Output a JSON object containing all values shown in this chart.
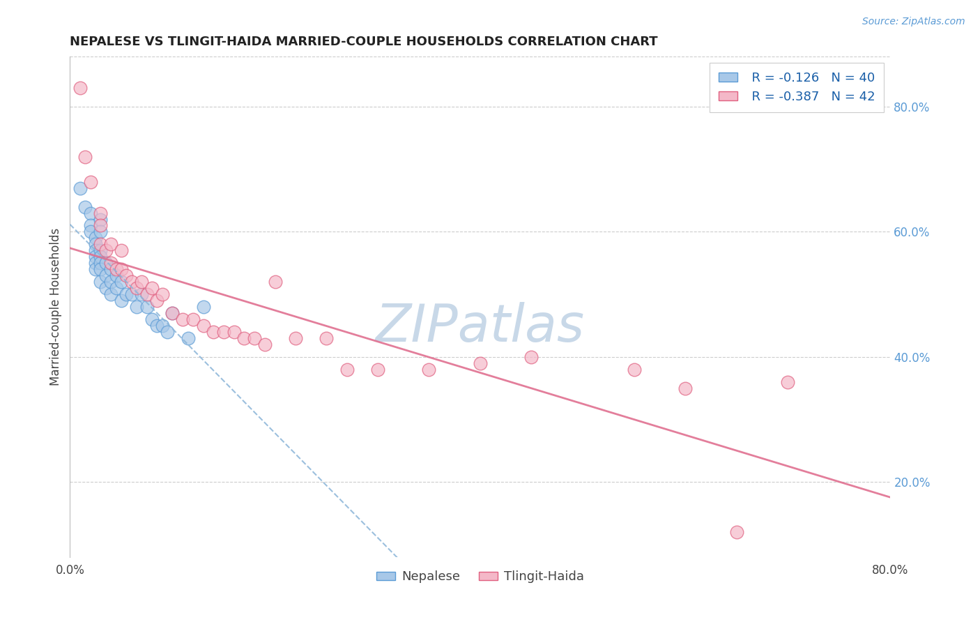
{
  "title": "NEPALESE VS TLINGIT-HAIDA MARRIED-COUPLE HOUSEHOLDS CORRELATION CHART",
  "source_text": "Source: ZipAtlas.com",
  "ylabel": "Married-couple Households",
  "xlim": [
    0.0,
    0.8
  ],
  "ylim": [
    0.08,
    0.88
  ],
  "blue_color": "#a8c8e8",
  "blue_edge_color": "#5b9bd5",
  "pink_color": "#f4b8c8",
  "pink_edge_color": "#e06080",
  "blue_line_color": "#8ab4d8",
  "pink_line_color": "#e07090",
  "nepalese_x": [
    0.01,
    0.015,
    0.02,
    0.02,
    0.02,
    0.025,
    0.025,
    0.025,
    0.025,
    0.025,
    0.025,
    0.03,
    0.03,
    0.03,
    0.03,
    0.03,
    0.03,
    0.03,
    0.035,
    0.035,
    0.035,
    0.04,
    0.04,
    0.04,
    0.045,
    0.045,
    0.05,
    0.05,
    0.055,
    0.06,
    0.065,
    0.07,
    0.075,
    0.08,
    0.085,
    0.09,
    0.095,
    0.1,
    0.115,
    0.13
  ],
  "nepalese_y": [
    0.67,
    0.64,
    0.63,
    0.61,
    0.6,
    0.59,
    0.58,
    0.57,
    0.56,
    0.55,
    0.54,
    0.62,
    0.6,
    0.57,
    0.56,
    0.55,
    0.54,
    0.52,
    0.55,
    0.53,
    0.51,
    0.54,
    0.52,
    0.5,
    0.53,
    0.51,
    0.52,
    0.49,
    0.5,
    0.5,
    0.48,
    0.5,
    0.48,
    0.46,
    0.45,
    0.45,
    0.44,
    0.47,
    0.43,
    0.48
  ],
  "tlingit_x": [
    0.01,
    0.015,
    0.02,
    0.03,
    0.03,
    0.03,
    0.035,
    0.04,
    0.04,
    0.045,
    0.05,
    0.05,
    0.055,
    0.06,
    0.065,
    0.07,
    0.075,
    0.08,
    0.085,
    0.09,
    0.1,
    0.11,
    0.12,
    0.13,
    0.14,
    0.15,
    0.16,
    0.17,
    0.18,
    0.19,
    0.2,
    0.22,
    0.25,
    0.27,
    0.3,
    0.35,
    0.4,
    0.45,
    0.55,
    0.6,
    0.65,
    0.7
  ],
  "tlingit_y": [
    0.83,
    0.72,
    0.68,
    0.63,
    0.61,
    0.58,
    0.57,
    0.58,
    0.55,
    0.54,
    0.57,
    0.54,
    0.53,
    0.52,
    0.51,
    0.52,
    0.5,
    0.51,
    0.49,
    0.5,
    0.47,
    0.46,
    0.46,
    0.45,
    0.44,
    0.44,
    0.44,
    0.43,
    0.43,
    0.42,
    0.52,
    0.43,
    0.43,
    0.38,
    0.38,
    0.38,
    0.39,
    0.4,
    0.38,
    0.35,
    0.12,
    0.36
  ],
  "watermark_color": "#c8d8e8",
  "background_color": "#ffffff",
  "grid_color": "#cccccc",
  "nepalese_label": "Nepalese",
  "tlingit_label": "Tlingit-Haida"
}
